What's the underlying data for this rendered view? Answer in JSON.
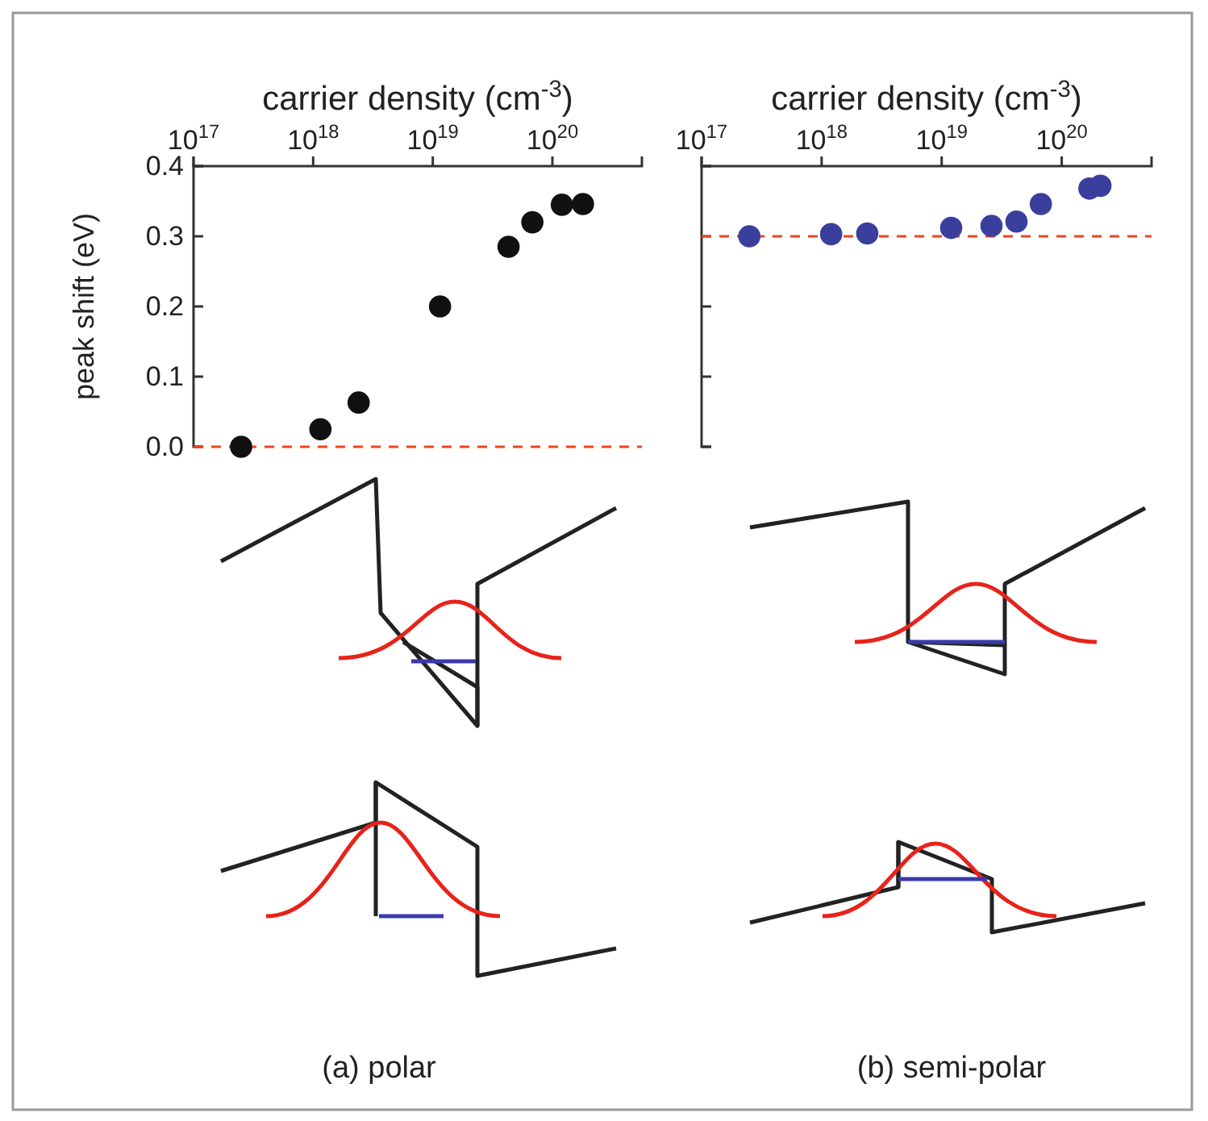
{
  "chart_data": [
    {
      "type": "scatter",
      "xlabel": "carrier density (cm$^{-3}$)",
      "ylabel": "peak shift (eV)",
      "log": "x",
      "xlim": [
        1e+17,
        5.6e+20
      ],
      "xticks": [
        {
          "value": 1e+17,
          "label": "10$^{17}$"
        },
        {
          "value": 1e+18,
          "label": "10$^{18}$"
        },
        {
          "value": 1e+19,
          "label": "10$^{19}$"
        },
        {
          "value": 1e+20,
          "label": "10$^{20}$"
        }
      ],
      "ylim": [
        0,
        0.4
      ],
      "yticks": [
        {
          "value": 0,
          "label": "0.0"
        },
        {
          "value": 0.1,
          "label": "0.1"
        },
        {
          "value": 0.2,
          "label": "0.2"
        },
        {
          "value": 0.3,
          "label": "0.3"
        },
        {
          "value": 0.4,
          "label": "0.4"
        }
      ],
      "marker": "circle",
      "series": [
        {
          "color": "#111111",
          "x": [
            2.5e+17,
            1.15e+18,
            2.4e+18,
            1.15e+19,
            4.3e+19,
            6.8e+19,
            1.2e+20,
            1.8e+20
          ],
          "values": [
            0.0,
            0.025,
            0.063,
            0.2,
            0.285,
            0.32,
            0.345,
            0.346
          ]
        }
      ],
      "ref_lines": [
        {
          "axis": "y",
          "value": 0,
          "color": "#ee4422",
          "line_style": "dashed"
        }
      ],
      "annotations": [
        "(a) polar"
      ]
    },
    {
      "type": "scatter",
      "xlabel": "carrier density (cm$^{-3}$)",
      "log": "x",
      "xlim": [
        1e+17,
        5.6e+20
      ],
      "xticks": [
        {
          "value": 1e+17,
          "label": "10$^{17}$"
        },
        {
          "value": 1e+18,
          "label": "10$^{18}$"
        },
        {
          "value": 1e+19,
          "label": "10$^{19}$"
        },
        {
          "value": 1e+20,
          "label": "10$^{20}$"
        }
      ],
      "ylim": [
        0,
        0.4
      ],
      "yticks": [
        0,
        0.1,
        0.2,
        0.3,
        0.4
      ],
      "tick_labels": "x",
      "marker": "circle",
      "series": [
        {
          "color": "#3a3f9e",
          "x": [
            2.5e+17,
            1.2e+18,
            2.4e+18,
            1.2e+19,
            2.6e+19,
            4.2e+19,
            6.7e+19,
            1.7e+20,
            2.1e+20
          ],
          "values": [
            0.3,
            0.303,
            0.304,
            0.312,
            0.315,
            0.321,
            0.346,
            0.368,
            0.372
          ]
        }
      ],
      "ref_lines": [
        {
          "axis": "y",
          "value": 0.3,
          "color": "#ee4422",
          "line_style": "dashed"
        }
      ],
      "annotations": [
        "(b) semi-polar"
      ]
    }
  ]
}
